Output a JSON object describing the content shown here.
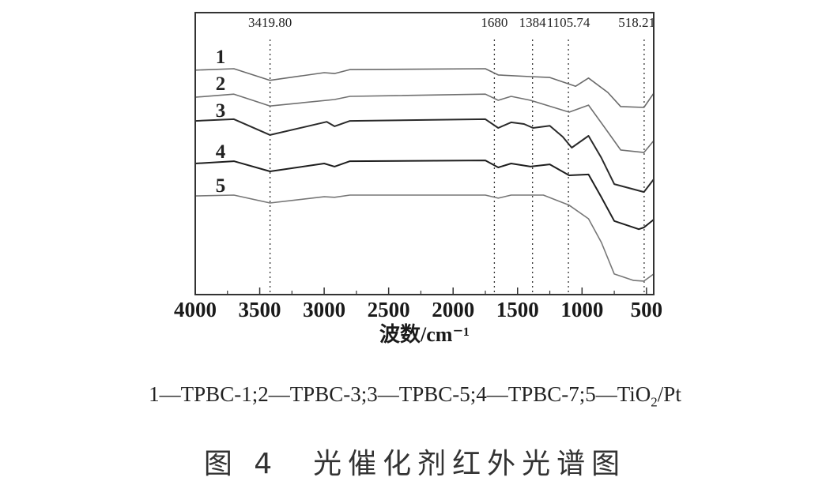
{
  "chart_data": {
    "type": "line",
    "xlabel": "波数/cm⁻¹",
    "ylabel": "",
    "xlim": [
      4000,
      444
    ],
    "x_reversed": true,
    "ylim": [
      0,
      100
    ],
    "x_ticks": [
      "4000",
      "3500",
      "3000",
      "2500",
      "2000",
      "1500",
      "1000",
      "500"
    ],
    "grid": false,
    "peak_lines": [
      {
        "x": 3419.8,
        "label": "3419.80"
      },
      {
        "x": 1680,
        "label": "1680"
      },
      {
        "x": 1384,
        "label": "1384"
      },
      {
        "x": 1105.74,
        "label": "1105.74"
      },
      {
        "x": 518.21,
        "label": "518.21"
      }
    ],
    "series": [
      {
        "name": "1",
        "color": "#6a6a6a",
        "x": [
          4000,
          3700,
          3420,
          3000,
          2920,
          2800,
          1750,
          1650,
          1400,
          1250,
          1050,
          950,
          800,
          700,
          520,
          444
        ],
        "y": [
          79.6,
          80.1,
          76.0,
          78.7,
          78.4,
          79.8,
          80.1,
          77.9,
          77.3,
          77.0,
          73.9,
          76.8,
          71.7,
          66.7,
          66.4,
          71.4
        ]
      },
      {
        "name": "2",
        "color": "#707070",
        "x": [
          4000,
          3700,
          3420,
          2920,
          2800,
          1750,
          1650,
          1550,
          1400,
          1100,
          950,
          800,
          700,
          520,
          444
        ],
        "y": [
          70.0,
          71.1,
          66.9,
          69.2,
          70.3,
          71.1,
          68.9,
          70.3,
          68.9,
          64.7,
          67.2,
          57.7,
          51.3,
          50.4,
          54.6
        ]
      },
      {
        "name": "3",
        "color": "#2a2a2a",
        "x": [
          4000,
          3700,
          3420,
          2980,
          2920,
          2800,
          1750,
          1650,
          1550,
          1450,
          1380,
          1250,
          1150,
          1080,
          950,
          850,
          750,
          520,
          444
        ],
        "y": [
          61.6,
          62.2,
          56.6,
          61.3,
          59.7,
          61.6,
          62.2,
          59.1,
          61.1,
          60.5,
          59.1,
          59.9,
          56.0,
          52.1,
          56.3,
          48.5,
          39.2,
          36.4,
          40.9
        ]
      },
      {
        "name": "4",
        "color": "#1e1e1e",
        "x": [
          4000,
          3700,
          3420,
          3000,
          2920,
          2800,
          1750,
          1650,
          1550,
          1400,
          1250,
          1100,
          950,
          850,
          750,
          560,
          520,
          444
        ],
        "y": [
          46.5,
          47.3,
          43.7,
          46.5,
          45.4,
          47.3,
          47.6,
          45.1,
          46.5,
          45.4,
          46.2,
          42.3,
          42.6,
          34.5,
          26.1,
          23.2,
          23.8,
          26.6
        ]
      },
      {
        "name": "5",
        "color": "#777777",
        "x": [
          4000,
          3700,
          3420,
          3000,
          2920,
          2800,
          1750,
          1650,
          1550,
          1300,
          1100,
          950,
          850,
          750,
          600,
          520,
          444
        ],
        "y": [
          35.0,
          35.3,
          32.5,
          34.7,
          34.5,
          35.3,
          35.3,
          34.2,
          35.3,
          35.3,
          31.7,
          26.9,
          18.5,
          7.3,
          5.0,
          4.8,
          7.3
        ]
      }
    ]
  },
  "legend_text": {
    "part1": "1—TPBC-1;2—TPBC-3;3—TPBC-5;4—TPBC-7;5—TiO",
    "sub": "2",
    "part2": "/Pt"
  },
  "caption": "图 4　光催化剂红外光谱图"
}
